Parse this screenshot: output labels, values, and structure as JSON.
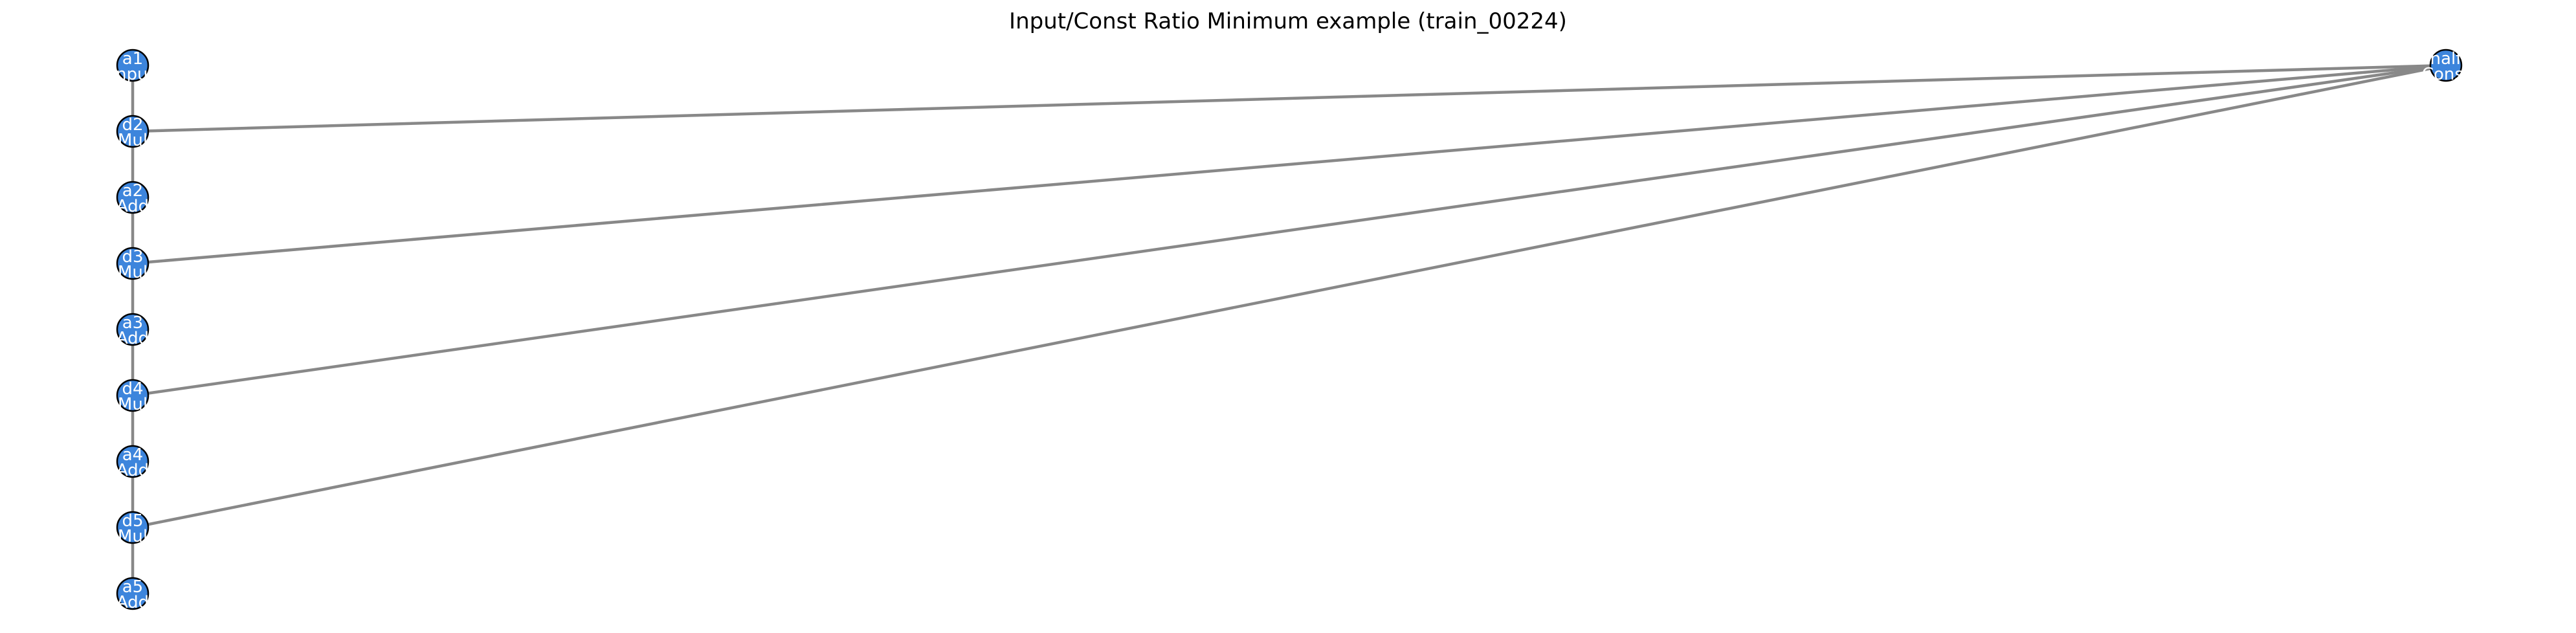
{
  "title": "Input/Const Ratio Minimum example (train_00224)",
  "colors": {
    "node_fill": "#3d85dc",
    "node_stroke": "#000000",
    "edge": "#888888",
    "label": "#ffffff"
  },
  "nodes": [
    {
      "id": "a1",
      "line1": "a1",
      "line2": "Input"
    },
    {
      "id": "d2",
      "line1": "d2",
      "line2": "Mul"
    },
    {
      "id": "a2",
      "line1": "a2",
      "line2": "Add"
    },
    {
      "id": "d3",
      "line1": "d3",
      "line2": "Mul"
    },
    {
      "id": "a3",
      "line1": "a3",
      "line2": "Add"
    },
    {
      "id": "d4",
      "line1": "d4",
      "line2": "Mul"
    },
    {
      "id": "a4",
      "line1": "a4",
      "line2": "Add"
    },
    {
      "id": "d5",
      "line1": "d5",
      "line2": "Mul"
    },
    {
      "id": "a5",
      "line1": "a5",
      "line2": "Add"
    },
    {
      "id": "half",
      "line1": "half",
      "line2": "Const"
    }
  ],
  "edges": [
    [
      "a1",
      "d2"
    ],
    [
      "d2",
      "a2"
    ],
    [
      "a2",
      "d3"
    ],
    [
      "d3",
      "a3"
    ],
    [
      "a3",
      "d4"
    ],
    [
      "d4",
      "a4"
    ],
    [
      "a4",
      "d5"
    ],
    [
      "d5",
      "a5"
    ],
    [
      "half",
      "d2"
    ],
    [
      "half",
      "d3"
    ],
    [
      "half",
      "d4"
    ],
    [
      "half",
      "d5"
    ]
  ]
}
